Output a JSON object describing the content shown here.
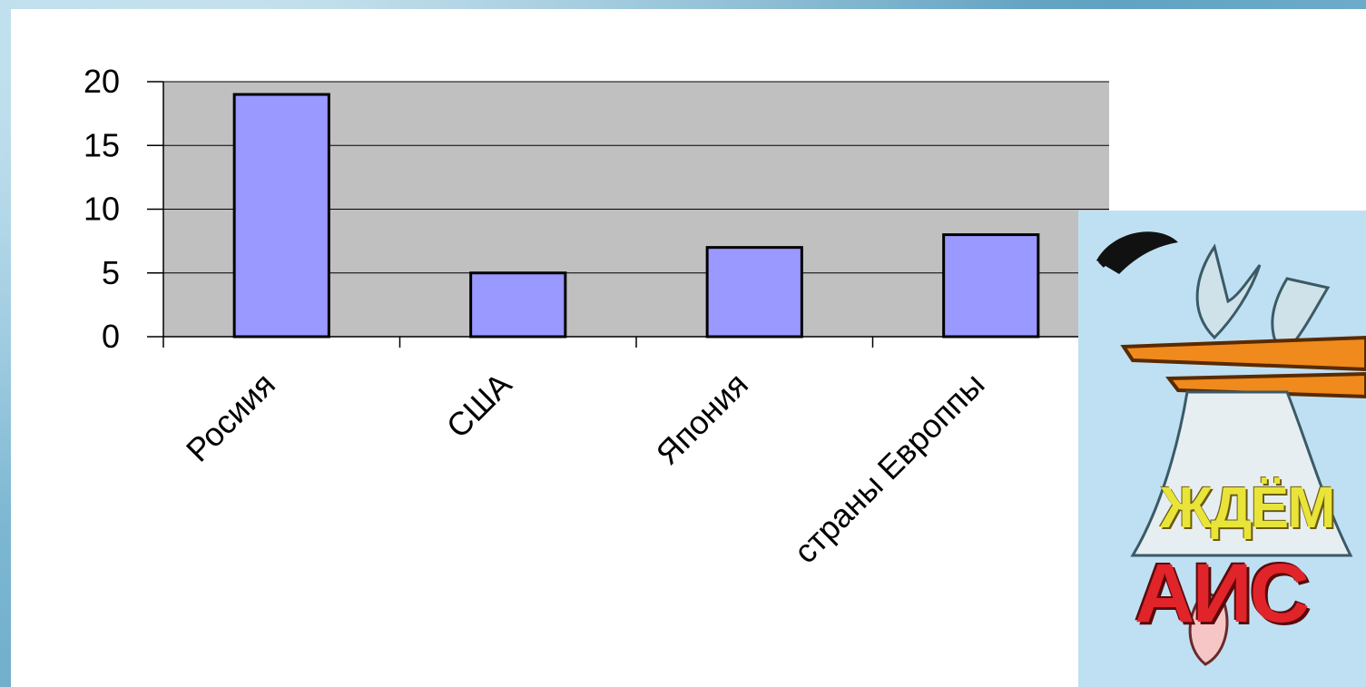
{
  "chart_data": {
    "type": "bar",
    "categories": [
      "Росиия",
      "США",
      "Япония",
      "страны Европпы"
    ],
    "values": [
      19,
      5,
      7,
      8
    ],
    "title": "",
    "xlabel": "",
    "ylabel": "",
    "ylim": [
      0,
      20
    ],
    "yticks": [
      0,
      5,
      10,
      15,
      20
    ],
    "grid": true,
    "colors": {
      "bar_fill": "#9999ff",
      "bar_stroke": "#000000",
      "plot_bg": "#c0c0c0",
      "gridline": "#000000"
    }
  },
  "illustration": {
    "banner_line1": "ЖДЁМ",
    "banner_line2": "АИС",
    "icon": "stork-delivering-baby-icon"
  }
}
